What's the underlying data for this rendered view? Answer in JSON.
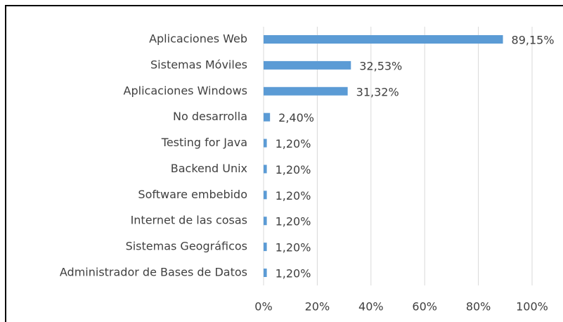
{
  "chart_data": {
    "type": "hbar",
    "categories": [
      "Aplicaciones Web",
      "Sistemas Móviles",
      "Aplicaciones Windows",
      "No desarrolla",
      "Testing for Java",
      "Backend Unix",
      "Software embebido",
      "Internet de las cosas ",
      "Sistemas Geográficos",
      "Administrador de Bases de Datos"
    ],
    "values": [
      89.15,
      32.53,
      31.32,
      2.4,
      1.2,
      1.2,
      1.2,
      1.2,
      1.2,
      1.2
    ],
    "value_labels": [
      "89,15%",
      "32,53%",
      "31,32%",
      "2,40%",
      "1,20%",
      "1,20%",
      "1,20%",
      "1,20%",
      "1,20%",
      "1,20%"
    ],
    "color": "#5b9bd5",
    "xlim": [
      0,
      100
    ],
    "xticks": [
      {
        "value": 0,
        "label": "0%"
      },
      {
        "value": 20,
        "label": "20%"
      },
      {
        "value": 40,
        "label": "40%"
      },
      {
        "value": 60,
        "label": "60%"
      },
      {
        "value": 80,
        "label": "80%"
      },
      {
        "value": 100,
        "label": "100%"
      }
    ],
    "grid": true
  }
}
